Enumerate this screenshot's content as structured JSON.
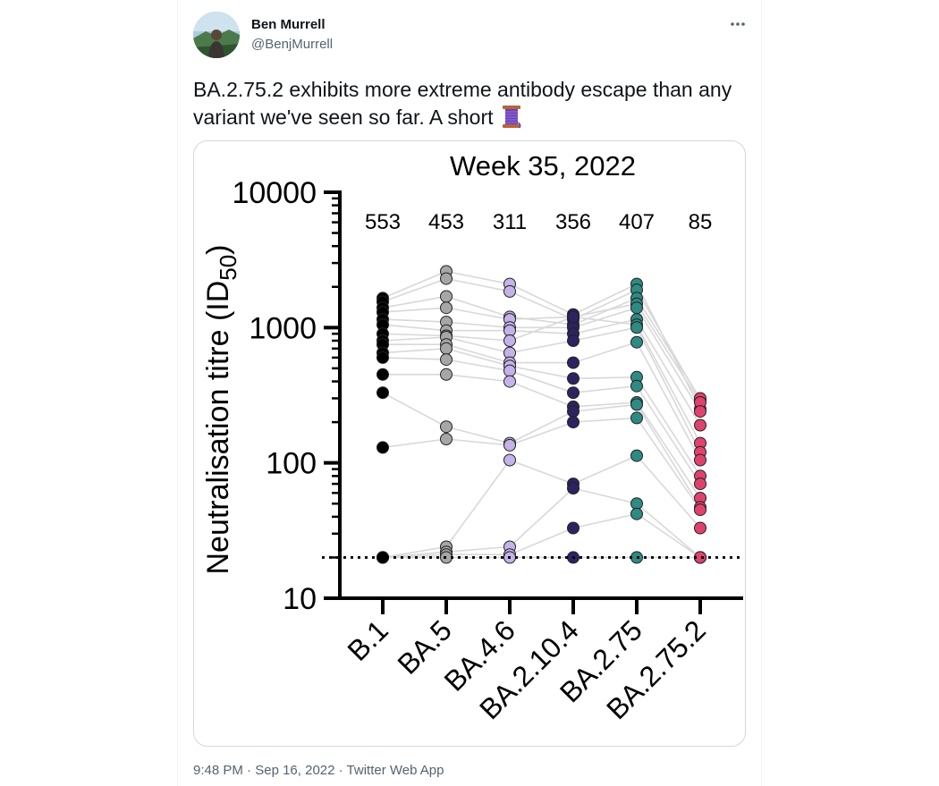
{
  "tweet": {
    "author_name": "Ben Murrell",
    "author_handle": "@BenjMurrell",
    "text": "BA.2.75.2 exhibits more extreme antibody escape than any variant we've seen so far. A short",
    "time": "9:48 PM",
    "date": "Sep 16, 2022",
    "source": "Twitter Web App",
    "separator": "·",
    "thread_emoji": "spool-of-thread-icon",
    "more_icon": "more-options-icon"
  },
  "chart_data": {
    "type": "scatter",
    "title": "Week 35, 2022",
    "ylabel_main": "Neutralisation titre (ID",
    "ylabel_sub": "50",
    "ylabel_close": ")",
    "y_scale": "log",
    "ylim": [
      10,
      10000
    ],
    "y_ticks": [
      {
        "value": 10,
        "label": "10"
      },
      {
        "value": 100,
        "label": "100"
      },
      {
        "value": 1000,
        "label": "1000"
      },
      {
        "value": 10000,
        "label": "10000"
      }
    ],
    "detection_limit": 20,
    "categories": [
      "B.1",
      "BA.5",
      "BA.4.6",
      "BA.2.10.4",
      "BA.2.75",
      "BA.2.75.2"
    ],
    "geometric_means": [
      "553",
      "453",
      "311",
      "356",
      "407",
      "85"
    ],
    "colors": [
      "#000000",
      "#a6a6a6",
      "#c4b3e8",
      "#2e2361",
      "#2e8a82",
      "#e0426e"
    ],
    "connector_color": "#d8d8d8",
    "series": [
      {
        "values": [
          1650,
          2600,
          2100,
          1250,
          2100,
          250
        ]
      },
      {
        "values": [
          1550,
          2300,
          1850,
          1150,
          1900,
          290
        ]
      },
      {
        "values": [
          1400,
          1700,
          1200,
          1050,
          1650,
          300
        ]
      },
      {
        "values": [
          1300,
          1400,
          1150,
          1200,
          1500,
          280
        ]
      },
      {
        "values": [
          1150,
          1100,
          1000,
          1000,
          1400,
          240
        ]
      },
      {
        "values": [
          1050,
          950,
          950,
          900,
          1150,
          190
        ]
      },
      {
        "values": [
          900,
          870,
          800,
          1200,
          1050,
          140
        ]
      },
      {
        "values": [
          800,
          850,
          650,
          800,
          1000,
          120
        ]
      },
      {
        "values": [
          750,
          750,
          550,
          550,
          780,
          105
        ]
      },
      {
        "values": [
          650,
          700,
          520,
          420,
          430,
          80
        ]
      },
      {
        "values": [
          600,
          580,
          480,
          330,
          370,
          70
        ]
      },
      {
        "values": [
          450,
          450,
          400,
          260,
          280,
          55
        ]
      },
      {
        "values": [
          330,
          185,
          140,
          240,
          270,
          47
        ]
      },
      {
        "values": [
          130,
          150,
          135,
          200,
          215,
          45
        ]
      },
      {
        "values": [
          20,
          24,
          105,
          70,
          113,
          33
        ]
      },
      {
        "values": [
          20,
          22,
          24,
          65,
          50,
          20
        ]
      },
      {
        "values": [
          20,
          21,
          21,
          33,
          42,
          20
        ]
      },
      {
        "values": [
          20,
          20,
          20,
          20,
          20,
          20
        ]
      }
    ]
  }
}
